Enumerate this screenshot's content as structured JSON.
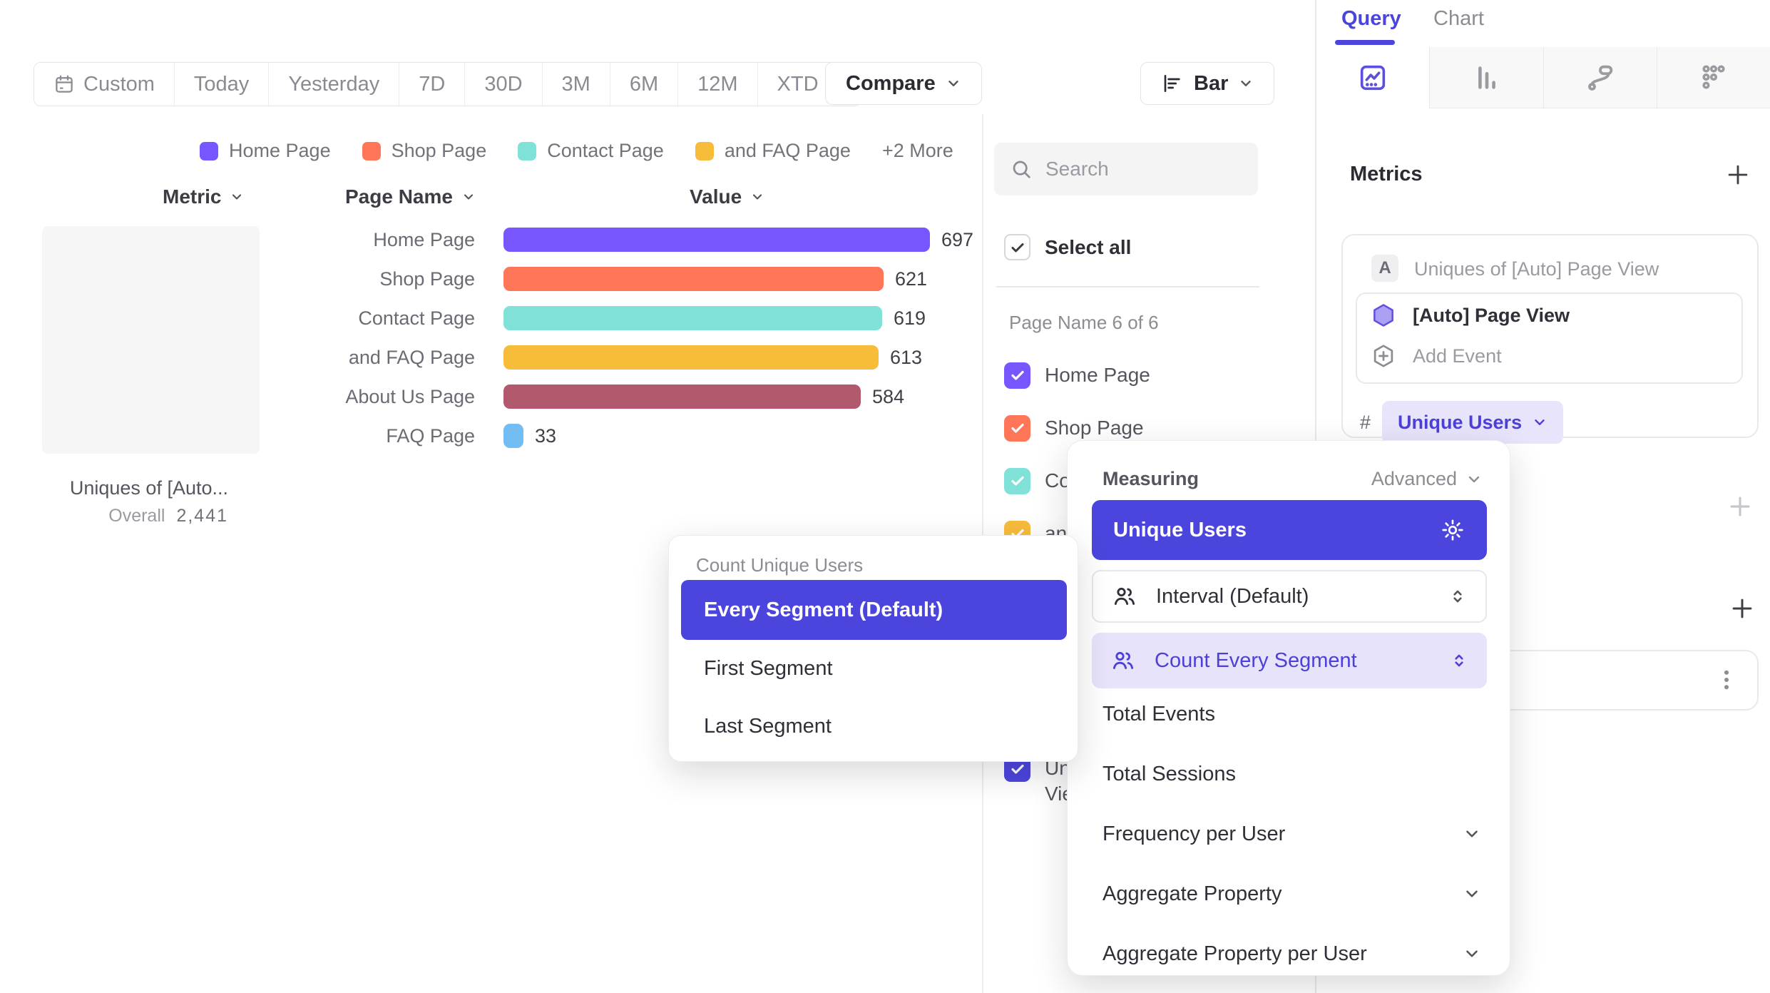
{
  "accent": "#4C45DD",
  "toolbar": {
    "date_buttons": [
      {
        "label": "Custom",
        "icon": true
      },
      {
        "label": "Today"
      },
      {
        "label": "Yesterday"
      },
      {
        "label": "7D",
        "active": true
      },
      {
        "label": "30D"
      },
      {
        "label": "3M"
      },
      {
        "label": "6M"
      },
      {
        "label": "12M"
      },
      {
        "label": "XTD",
        "chevron": true
      }
    ],
    "compare_label": "Compare",
    "chart_type_label": "Bar"
  },
  "legend": {
    "items": [
      {
        "label": "Home Page",
        "color": "#7856FF"
      },
      {
        "label": "Shop Page",
        "color": "#FF7557"
      },
      {
        "label": "Contact Page",
        "color": "#80E1D9"
      },
      {
        "label": "and FAQ Page",
        "color": "#F8BC3B"
      }
    ],
    "more": "+2 More"
  },
  "table": {
    "metric_header": "Metric",
    "page_name_header": "Page Name",
    "value_header": "Value"
  },
  "metric_summary": {
    "title": "Uniques of [Auto...",
    "overall_label": "Overall",
    "overall_value": "2,441"
  },
  "chart_data": {
    "type": "bar",
    "orientation": "horizontal",
    "metric": "Uniques of [Auto] Page View",
    "overall": 2441,
    "categories": [
      "Home Page",
      "Shop Page",
      "Contact Page",
      "and FAQ Page",
      "About Us Page",
      "FAQ Page"
    ],
    "values": [
      697,
      621,
      619,
      613,
      584,
      33
    ],
    "colors": [
      "#7856FF",
      "#FF7557",
      "#80E1D9",
      "#F8BC3B",
      "#B2596E",
      "#72BEF4"
    ],
    "xlim": [
      0,
      697
    ],
    "grid": false,
    "value_labels": true
  },
  "filter_panel": {
    "search_placeholder": "Search",
    "select_all_label": "Select all",
    "group_label": "Page Name 6 of 6",
    "items": [
      {
        "label": "Home Page",
        "color": "#7856FF",
        "checked": true
      },
      {
        "label": "Shop Page",
        "color": "#FF7557",
        "checked": true
      },
      {
        "label": "Contact Page",
        "color": "#80E1D9",
        "checked": true
      },
      {
        "label": "and FAQ Page",
        "color": "#F8BC3B",
        "checked": true
      },
      {
        "label": "About Us Page",
        "color": "#B2596E",
        "checked": true
      },
      {
        "label": "FAQ Page",
        "color": "#72BEF4",
        "checked": true
      }
    ],
    "metric_item": {
      "label": "Uniques of [Auto] Page View",
      "color": "#4C45DD",
      "checked": true
    }
  },
  "query_panel": {
    "tab_query": "Query",
    "tab_chart": "Chart",
    "metrics_title": "Metrics",
    "metric_card": {
      "badge": "A",
      "title": "Uniques of [Auto] Page View",
      "event_label": "[Auto] Page View",
      "add_event_label": "Add Event",
      "hash": "#",
      "measurement_label": "Unique Users"
    }
  },
  "segment_menu": {
    "title": "Count Unique Users",
    "items": [
      {
        "label": "Every Segment (Default)",
        "selected": true
      },
      {
        "label": "First Segment"
      },
      {
        "label": "Last Segment"
      }
    ]
  },
  "measuring_menu": {
    "title": "Measuring",
    "advanced_label": "Advanced",
    "selected_label": "Unique Users",
    "interval_label": "Interval (Default)",
    "count_label": "Count Every Segment",
    "items": [
      {
        "label": "Total Events"
      },
      {
        "label": "Total Sessions"
      },
      {
        "label": "Frequency per User",
        "chevron": true
      },
      {
        "label": "Aggregate Property",
        "chevron": true
      },
      {
        "label": "Aggregate Property per User",
        "chevron": true
      }
    ]
  }
}
